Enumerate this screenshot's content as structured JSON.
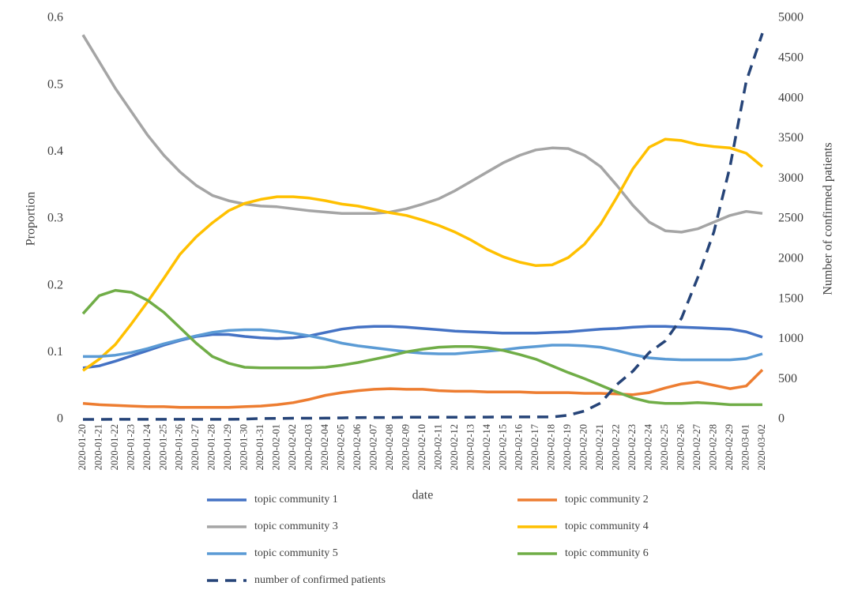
{
  "chart_data": {
    "type": "line",
    "x_label": "date",
    "y_label": "Proportion",
    "y2_label": "Number of confirmed patients",
    "categories": [
      "2020-01-20",
      "2020-01-21",
      "2020-01-22",
      "2020-01-23",
      "2020-01-24",
      "2020-01-25",
      "2020-01-26",
      "2020-01-27",
      "2020-01-28",
      "2020-01-29",
      "2020-01-30",
      "2020-01-31",
      "2020-02-01",
      "2020-02-02",
      "2020-02-03",
      "2020-02-04",
      "2020-02-05",
      "2020-02-06",
      "2020-02-07",
      "2020-02-08",
      "2020-02-09",
      "2020-02-10",
      "2020-02-11",
      "2020-02-12",
      "2020-02-13",
      "2020-02-14",
      "2020-02-15",
      "2020-02-16",
      "2020-02-17",
      "2020-02-18",
      "2020-02-19",
      "2020-02-20",
      "2020-02-21",
      "2020-02-22",
      "2020-02-23",
      "2020-02-24",
      "2020-02-25",
      "2020-02-26",
      "2020-02-27",
      "2020-02-28",
      "2020-02-29",
      "2020-03-01",
      "2020-03-02"
    ],
    "ylim": [
      0,
      0.6
    ],
    "yticks": [
      0,
      0.1,
      0.2,
      0.3,
      0.4,
      0.5,
      0.6
    ],
    "y2lim": [
      0,
      5000
    ],
    "y2ticks": [
      0,
      500,
      1000,
      1500,
      2000,
      2500,
      3000,
      3500,
      4000,
      4500,
      5000
    ],
    "grid": false,
    "legend": "bottom",
    "series": [
      {
        "name": "topic community 1",
        "color": "#4472c4",
        "values": [
          0.077,
          0.08,
          0.087,
          0.095,
          0.103,
          0.111,
          0.118,
          0.124,
          0.127,
          0.127,
          0.124,
          0.122,
          0.121,
          0.122,
          0.125,
          0.13,
          0.135,
          0.138,
          0.139,
          0.139,
          0.138,
          0.136,
          0.134,
          0.132,
          0.131,
          0.13,
          0.129,
          0.129,
          0.129,
          0.13,
          0.131,
          0.133,
          0.135,
          0.136,
          0.138,
          0.139,
          0.139,
          0.138,
          0.137,
          0.136,
          0.135,
          0.131,
          0.123
        ]
      },
      {
        "name": "topic community 2",
        "color": "#ed7d31",
        "values": [
          0.024,
          0.022,
          0.021,
          0.02,
          0.019,
          0.019,
          0.018,
          0.018,
          0.018,
          0.018,
          0.019,
          0.02,
          0.022,
          0.025,
          0.03,
          0.036,
          0.04,
          0.043,
          0.045,
          0.046,
          0.045,
          0.045,
          0.043,
          0.042,
          0.042,
          0.041,
          0.041,
          0.041,
          0.04,
          0.04,
          0.04,
          0.039,
          0.039,
          0.038,
          0.037,
          0.04,
          0.047,
          0.053,
          0.056,
          0.051,
          0.046,
          0.05,
          0.074
        ]
      },
      {
        "name": "topic community 3",
        "color": "#a5a5a5",
        "values": [
          0.575,
          0.535,
          0.495,
          0.46,
          0.425,
          0.395,
          0.37,
          0.35,
          0.335,
          0.327,
          0.322,
          0.319,
          0.318,
          0.315,
          0.312,
          0.31,
          0.308,
          0.308,
          0.308,
          0.31,
          0.315,
          0.322,
          0.33,
          0.342,
          0.356,
          0.37,
          0.384,
          0.395,
          0.403,
          0.406,
          0.405,
          0.395,
          0.378,
          0.35,
          0.32,
          0.295,
          0.282,
          0.28,
          0.285,
          0.295,
          0.305,
          0.311,
          0.308
        ]
      },
      {
        "name": "topic community 4",
        "color": "#ffc000",
        "values": [
          0.073,
          0.09,
          0.112,
          0.143,
          0.176,
          0.211,
          0.247,
          0.273,
          0.294,
          0.312,
          0.323,
          0.329,
          0.333,
          0.333,
          0.331,
          0.327,
          0.322,
          0.319,
          0.314,
          0.309,
          0.305,
          0.298,
          0.29,
          0.28,
          0.268,
          0.254,
          0.243,
          0.235,
          0.23,
          0.231,
          0.242,
          0.262,
          0.292,
          0.332,
          0.375,
          0.407,
          0.419,
          0.417,
          0.411,
          0.408,
          0.406,
          0.398,
          0.378
        ]
      },
      {
        "name": "topic community 5",
        "color": "#5b9bd5",
        "values": [
          0.094,
          0.094,
          0.096,
          0.1,
          0.106,
          0.113,
          0.119,
          0.125,
          0.13,
          0.133,
          0.134,
          0.134,
          0.132,
          0.129,
          0.125,
          0.12,
          0.114,
          0.11,
          0.107,
          0.104,
          0.101,
          0.099,
          0.098,
          0.098,
          0.1,
          0.102,
          0.104,
          0.107,
          0.109,
          0.111,
          0.111,
          0.11,
          0.108,
          0.103,
          0.097,
          0.092,
          0.09,
          0.089,
          0.089,
          0.089,
          0.089,
          0.091,
          0.098
        ]
      },
      {
        "name": "topic community 6",
        "color": "#70ad47",
        "values": [
          0.158,
          0.185,
          0.193,
          0.19,
          0.178,
          0.16,
          0.137,
          0.114,
          0.094,
          0.084,
          0.078,
          0.077,
          0.077,
          0.077,
          0.077,
          0.078,
          0.081,
          0.085,
          0.09,
          0.095,
          0.101,
          0.105,
          0.108,
          0.109,
          0.109,
          0.107,
          0.103,
          0.097,
          0.09,
          0.08,
          0.07,
          0.061,
          0.051,
          0.041,
          0.032,
          0.026,
          0.024,
          0.024,
          0.025,
          0.024,
          0.022,
          0.022,
          0.022
        ]
      },
      {
        "name": "number of confirmed patients",
        "color": "#264478",
        "dashed": true,
        "axis": "y2",
        "values": [
          0,
          0,
          1,
          1,
          1,
          1,
          1,
          1,
          1,
          1,
          4,
          11,
          12,
          15,
          15,
          16,
          19,
          23,
          24,
          24,
          27,
          28,
          28,
          28,
          28,
          29,
          30,
          31,
          31,
          31,
          51,
          104,
          204,
          433,
          602,
          833,
          977,
          1261,
          1766,
          2337,
          3150,
          4212,
          4812
        ]
      }
    ]
  }
}
